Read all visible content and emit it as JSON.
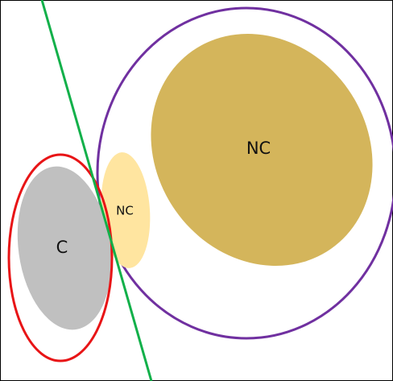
{
  "labels": {
    "class_c": "C",
    "small_nc": "NC",
    "large_nc": "NC"
  },
  "colors": {
    "frame": "#000000",
    "class_c_fill": "#c0c0c0",
    "small_nc_fill": "#ffe5a0",
    "large_nc_fill": "#d4b55b",
    "red_boundary": "#e81416",
    "purple_boundary": "#7030a0",
    "green_separator": "#12b04a"
  }
}
